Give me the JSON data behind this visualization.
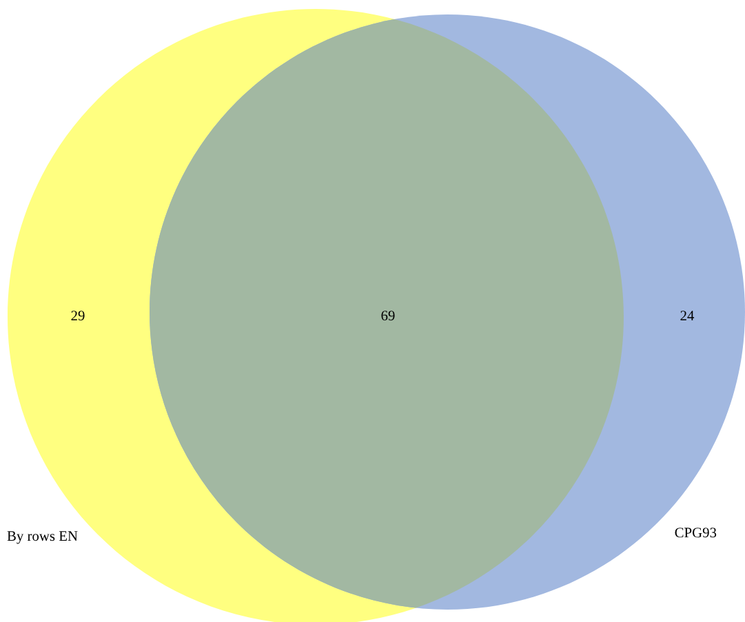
{
  "chart_data": {
    "type": "other",
    "categories": [
      "By rows EN",
      null,
      "CPG93"
    ],
    "values": [
      29,
      69,
      24
    ],
    "colors": [
      "#ffff80",
      "#a2b8a2",
      "#a2b8e0"
    ],
    "data_labels": true
  }
}
